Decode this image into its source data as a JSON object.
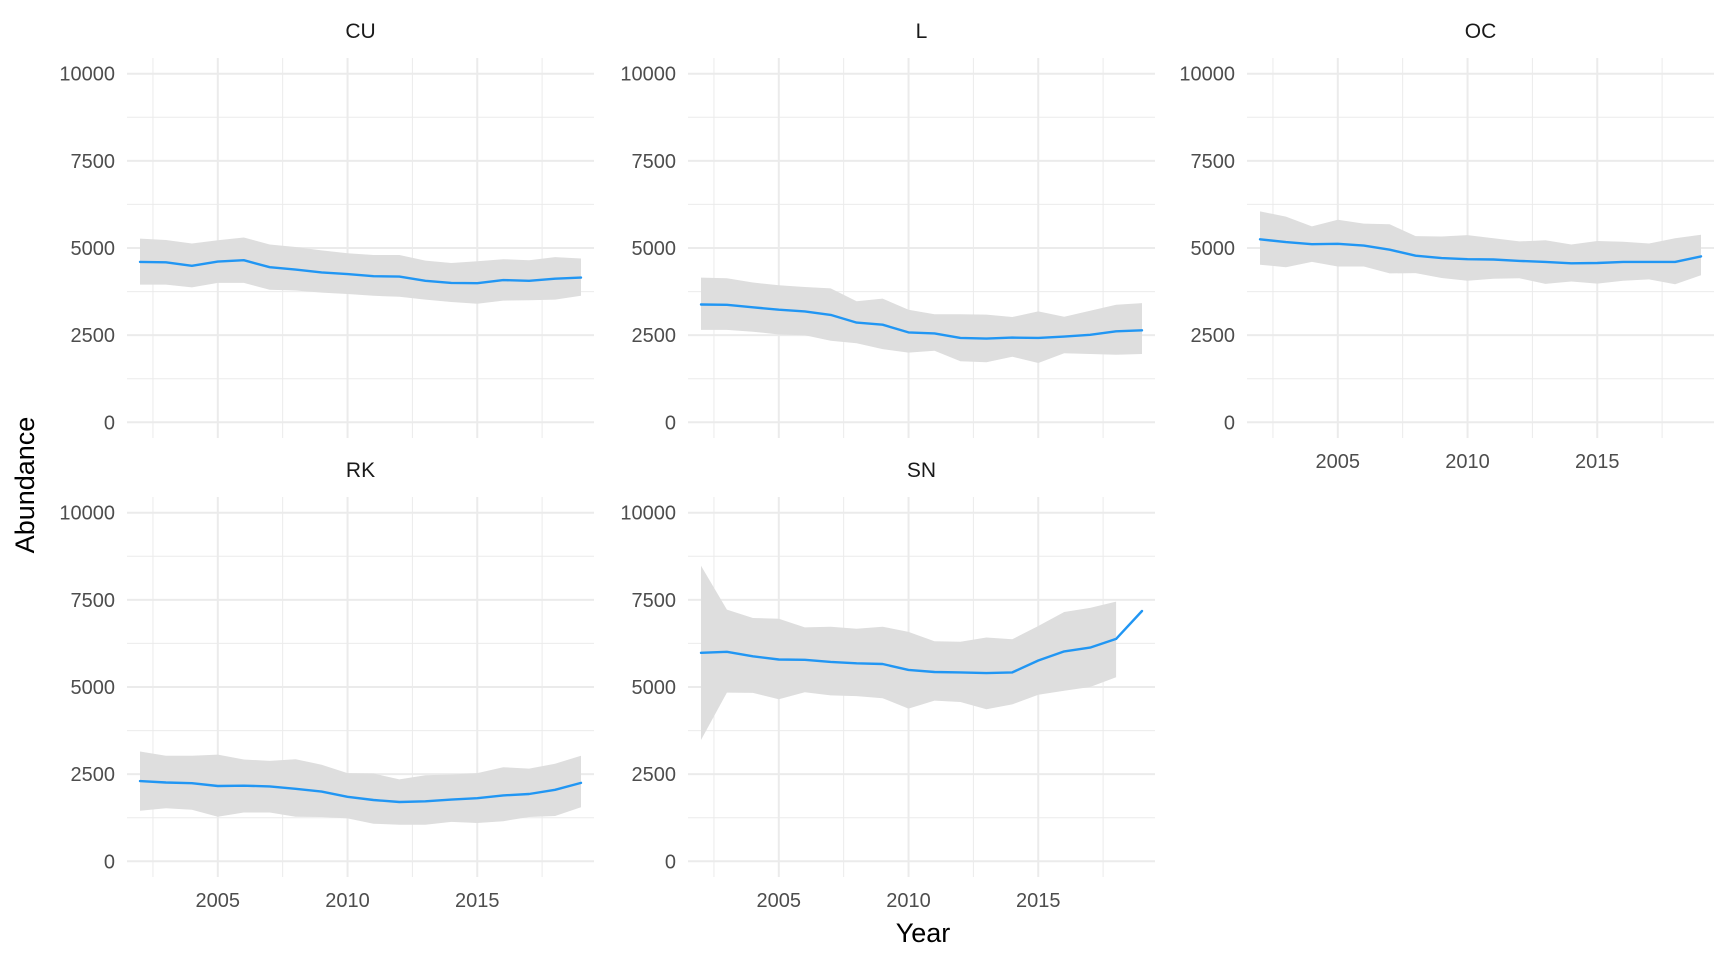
{
  "chart_data": {
    "type": "line",
    "xlabel": "Year",
    "ylabel": "Abundance",
    "xlim": [
      2001.5,
      2019.5
    ],
    "ylim": [
      -450,
      10450
    ],
    "x_ticks": [
      2005,
      2010,
      2015
    ],
    "y_ticks": [
      0,
      2500,
      5000,
      7500,
      10000
    ],
    "grid": true,
    "legend": "none",
    "colors": {
      "line": "#2196F3",
      "ribbon": "#dedede"
    },
    "panels": [
      {
        "label": "CU",
        "x": [
          2002,
          2003,
          2004,
          2005,
          2006,
          2007,
          2008,
          2009,
          2010,
          2011,
          2012,
          2013,
          2014,
          2015,
          2016,
          2017,
          2018,
          2019
        ],
        "mean": [
          4600,
          4590,
          4490,
          4610,
          4650,
          4450,
          4380,
          4300,
          4250,
          4190,
          4180,
          4060,
          4000,
          3990,
          4080,
          4060,
          4120,
          4150
        ],
        "lower": [
          3950,
          3950,
          3870,
          4000,
          4000,
          3800,
          3780,
          3720,
          3680,
          3630,
          3600,
          3520,
          3450,
          3400,
          3490,
          3500,
          3520,
          3630
        ],
        "upper": [
          5270,
          5230,
          5130,
          5220,
          5300,
          5100,
          5030,
          4930,
          4850,
          4800,
          4800,
          4640,
          4570,
          4620,
          4680,
          4650,
          4740,
          4700
        ]
      },
      {
        "label": "L",
        "x": [
          2002,
          2003,
          2004,
          2005,
          2006,
          2007,
          2008,
          2009,
          2010,
          2011,
          2012,
          2013,
          2014,
          2015,
          2016,
          2017,
          2018,
          2019
        ],
        "mean": [
          3380,
          3370,
          3300,
          3230,
          3180,
          3080,
          2860,
          2800,
          2580,
          2550,
          2420,
          2400,
          2430,
          2420,
          2460,
          2510,
          2610,
          2640
        ],
        "lower": [
          2650,
          2650,
          2600,
          2520,
          2500,
          2340,
          2270,
          2100,
          2000,
          2050,
          1750,
          1720,
          1880,
          1700,
          1980,
          1960,
          1940,
          1960
        ],
        "upper": [
          4150,
          4130,
          4010,
          3930,
          3880,
          3840,
          3470,
          3550,
          3230,
          3100,
          3100,
          3090,
          3020,
          3180,
          3030,
          3200,
          3370,
          3420
        ]
      },
      {
        "label": "OC",
        "x": [
          2002,
          2003,
          2004,
          2005,
          2006,
          2007,
          2008,
          2009,
          2010,
          2011,
          2012,
          2013,
          2014,
          2015,
          2016,
          2017,
          2018,
          2019
        ],
        "mean": [
          5250,
          5170,
          5110,
          5120,
          5070,
          4950,
          4780,
          4710,
          4680,
          4670,
          4630,
          4600,
          4560,
          4570,
          4600,
          4600,
          4600,
          4760
        ],
        "lower": [
          4520,
          4450,
          4600,
          4470,
          4470,
          4270,
          4280,
          4140,
          4060,
          4120,
          4130,
          3970,
          4040,
          3980,
          4060,
          4100,
          3960,
          4220
        ],
        "upper": [
          6050,
          5900,
          5620,
          5810,
          5700,
          5680,
          5340,
          5330,
          5370,
          5280,
          5190,
          5220,
          5100,
          5200,
          5180,
          5130,
          5280,
          5380
        ]
      },
      {
        "label": "RK",
        "x": [
          2002,
          2003,
          2004,
          2005,
          2006,
          2007,
          2008,
          2009,
          2010,
          2011,
          2012,
          2013,
          2014,
          2015,
          2016,
          2017,
          2018,
          2019
        ],
        "mean": [
          2300,
          2260,
          2240,
          2160,
          2170,
          2150,
          2080,
          2000,
          1850,
          1760,
          1700,
          1720,
          1770,
          1810,
          1890,
          1930,
          2050,
          2250
        ],
        "lower": [
          1450,
          1520,
          1480,
          1280,
          1400,
          1400,
          1280,
          1270,
          1230,
          1080,
          1050,
          1050,
          1130,
          1100,
          1150,
          1270,
          1300,
          1550
        ],
        "upper": [
          3150,
          3030,
          3030,
          3060,
          2920,
          2880,
          2930,
          2770,
          2530,
          2520,
          2350,
          2470,
          2490,
          2530,
          2700,
          2660,
          2800,
          3030
        ]
      },
      {
        "label": "SN",
        "x": [
          2002,
          2003,
          2004,
          2005,
          2006,
          2007,
          2008,
          2009,
          2010,
          2011,
          2012,
          2013,
          2014,
          2015,
          2016,
          2017,
          2018,
          2019
        ],
        "mean": [
          5980,
          6010,
          5880,
          5790,
          5780,
          5720,
          5680,
          5660,
          5490,
          5430,
          5420,
          5400,
          5420,
          5760,
          6020,
          6130,
          6380,
          7180
        ],
        "lower": [
          3480,
          4840,
          4830,
          4650,
          4850,
          4760,
          4740,
          4680,
          4380,
          4610,
          4570,
          4360,
          4500,
          4780,
          4890,
          5000,
          5280,
          null
        ],
        "upper": [
          8480,
          7220,
          6980,
          6960,
          6710,
          6730,
          6670,
          6730,
          6580,
          6310,
          6300,
          6420,
          6370,
          6750,
          7150,
          7270,
          7450,
          null
        ]
      }
    ]
  }
}
